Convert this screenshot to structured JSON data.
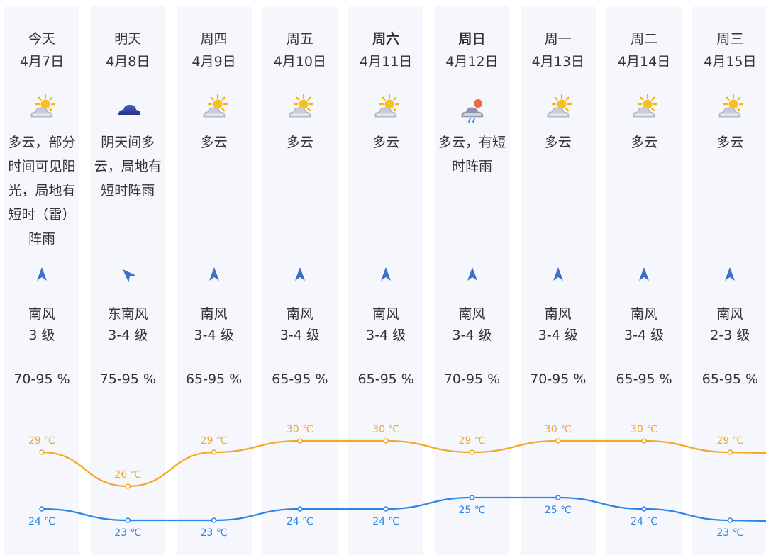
{
  "days": [
    {
      "weekday": "今天",
      "bold": false,
      "date": "4月7日",
      "icon": "partly-cloudy-icon",
      "desc": "多云，部分时间可见阳光，局地有短时（雷）阵雨",
      "desc_lines": [
        "多云，部分",
        "时间可见阳",
        "光，局地有",
        "短时（雷）",
        "阵雨"
      ],
      "wind_dir": "南风",
      "wind_level": "3 级",
      "wind_angle": 0,
      "humidity": "70-95 %",
      "high": 29,
      "low": 24,
      "high_label": "29 ℃",
      "low_label": "24 ℃"
    },
    {
      "weekday": "明天",
      "bold": false,
      "date": "4月8日",
      "icon": "overcast-icon",
      "desc": "阴天间多云，局地有短时阵雨",
      "desc_lines": [
        "阴天间多",
        "云，局地有",
        "短时阵雨"
      ],
      "wind_dir": "东南风",
      "wind_level": "3-4 级",
      "wind_angle": -45,
      "humidity": "75-95 %",
      "high": 26,
      "low": 23,
      "high_label": "26 ℃",
      "low_label": "23 ℃"
    },
    {
      "weekday": "周四",
      "bold": false,
      "date": "4月9日",
      "icon": "partly-cloudy-icon",
      "desc": "多云",
      "desc_lines": [
        "多云"
      ],
      "wind_dir": "南风",
      "wind_level": "3-4 级",
      "wind_angle": 0,
      "humidity": "65-95 %",
      "high": 29,
      "low": 23,
      "high_label": "29 ℃",
      "low_label": "23 ℃"
    },
    {
      "weekday": "周五",
      "bold": false,
      "date": "4月10日",
      "icon": "partly-cloudy-icon",
      "desc": "多云",
      "desc_lines": [
        "多云"
      ],
      "wind_dir": "南风",
      "wind_level": "3-4 级",
      "wind_angle": 0,
      "humidity": "65-95 %",
      "high": 30,
      "low": 24,
      "high_label": "30 ℃",
      "low_label": "24 ℃"
    },
    {
      "weekday": "周六",
      "bold": true,
      "date": "4月11日",
      "icon": "partly-cloudy-icon",
      "desc": "多云",
      "desc_lines": [
        "多云"
      ],
      "wind_dir": "南风",
      "wind_level": "3-4 级",
      "wind_angle": 0,
      "humidity": "65-95 %",
      "high": 30,
      "low": 24,
      "high_label": "30 ℃",
      "low_label": "24 ℃"
    },
    {
      "weekday": "周日",
      "bold": true,
      "date": "4月12日",
      "icon": "shower-icon",
      "desc": "多云，有短时阵雨",
      "desc_lines": [
        "多云，有短",
        "时阵雨"
      ],
      "wind_dir": "南风",
      "wind_level": "3-4 级",
      "wind_angle": 0,
      "humidity": "70-95 %",
      "high": 29,
      "low": 25,
      "high_label": "29 ℃",
      "low_label": "25 ℃"
    },
    {
      "weekday": "周一",
      "bold": false,
      "date": "4月13日",
      "icon": "partly-cloudy-icon",
      "desc": "多云",
      "desc_lines": [
        "多云"
      ],
      "wind_dir": "南风",
      "wind_level": "3-4 级",
      "wind_angle": 0,
      "humidity": "70-95 %",
      "high": 30,
      "low": 25,
      "high_label": "30 ℃",
      "low_label": "25 ℃"
    },
    {
      "weekday": "周二",
      "bold": false,
      "date": "4月14日",
      "icon": "partly-cloudy-icon",
      "desc": "多云",
      "desc_lines": [
        "多云"
      ],
      "wind_dir": "南风",
      "wind_level": "3-4 级",
      "wind_angle": 0,
      "humidity": "65-95 %",
      "high": 30,
      "low": 24,
      "high_label": "30 ℃",
      "low_label": "24 ℃"
    },
    {
      "weekday": "周三",
      "bold": false,
      "date": "4月15日",
      "icon": "partly-cloudy-icon",
      "desc": "多云",
      "desc_lines": [
        "多云"
      ],
      "wind_dir": "南风",
      "wind_level": "2-3 级",
      "wind_angle": 0,
      "humidity": "65-95 %",
      "high": 29,
      "low": 23,
      "high_label": "29 ℃",
      "low_label": "23 ℃"
    }
  ],
  "colors": {
    "column_bg": "#f6f7fc",
    "high_line": "#f5a623",
    "low_line": "#2b86e8",
    "wind_arrow": "#3d6fc4",
    "text": "#333333"
  }
}
